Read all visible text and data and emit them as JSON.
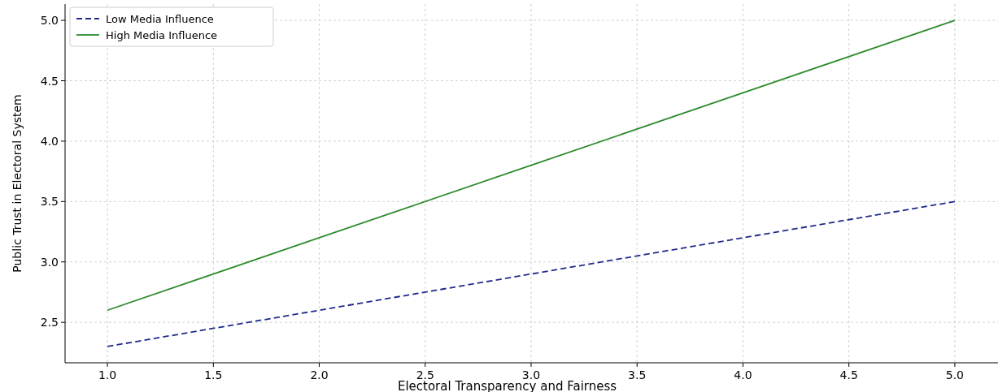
{
  "chart_data": {
    "type": "line",
    "xlabel": "Electoral Transparency and Fairness",
    "ylabel": "Public Trust in Electoral System",
    "x": [
      1,
      2,
      3,
      4,
      5
    ],
    "series": [
      {
        "name": "Low Media Influence",
        "color": "#1f2a8a",
        "values": [
          2.3,
          2.6,
          2.9,
          3.2,
          3.5
        ],
        "line_style": "dashed"
      },
      {
        "name": "High Media Influence",
        "color": "#2e8b2e",
        "values": [
          2.6,
          3.2,
          3.8,
          4.4,
          5.0
        ],
        "line_style": "solid"
      }
    ],
    "xlim": [
      0.8,
      5.2
    ],
    "xticks": [
      {
        "value": 1,
        "label": "1.0"
      },
      1.5,
      {
        "value": 2,
        "label": "2.0"
      },
      2.5,
      {
        "value": 3,
        "label": "3.0"
      },
      3.5,
      {
        "value": 4,
        "label": "4.0"
      },
      4.5,
      {
        "value": 5,
        "label": "5.0"
      }
    ],
    "ylim": [
      2.165,
      5.135
    ],
    "yticks": [
      2.5,
      {
        "value": 3,
        "label": "3.0"
      },
      3.5,
      {
        "value": 4,
        "label": "4.0"
      },
      4.5,
      {
        "value": 5,
        "label": "5.0"
      }
    ],
    "grid": true,
    "legend": "top left"
  }
}
